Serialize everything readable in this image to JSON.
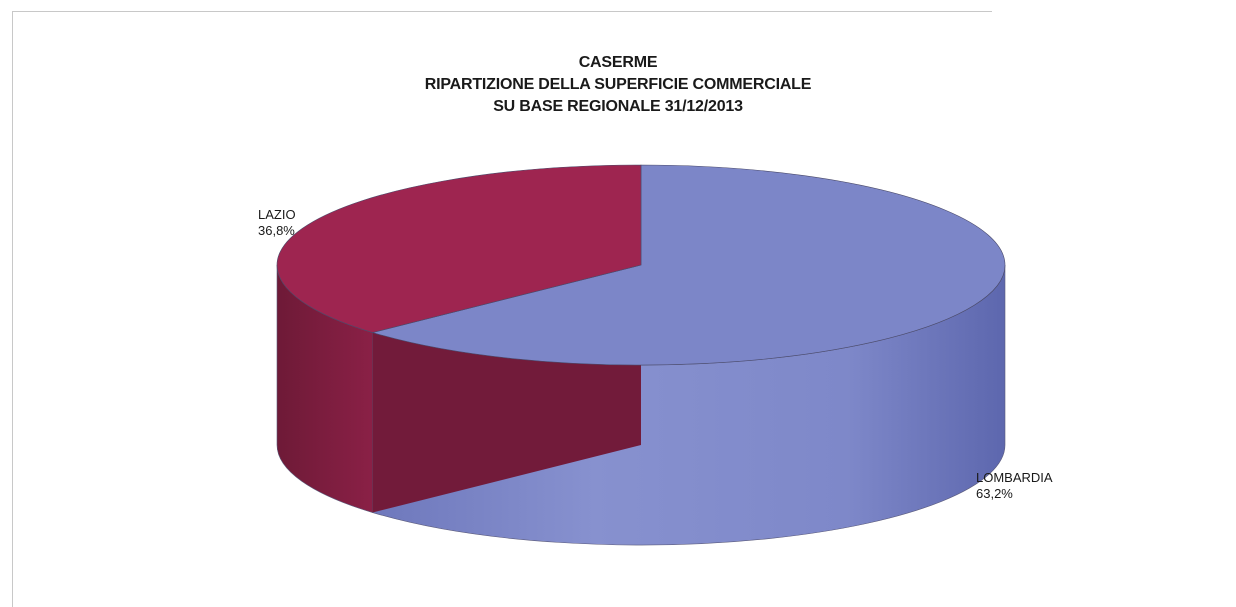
{
  "chart_data": {
    "type": "pie",
    "style": "3d",
    "title": [
      "CASERME",
      "RIPARTIZIONE DELLA SUPERFICIE COMMERCIALE",
      "SU BASE REGIONALE 31/12/2013"
    ],
    "labels": [
      "LOMBARDIA",
      "LAZIO"
    ],
    "values": [
      63.2,
      36.8
    ],
    "value_labels": [
      "63,2%",
      "36,8%"
    ],
    "colors": [
      "#7C86C8",
      "#9E2550"
    ],
    "legend": "none"
  }
}
